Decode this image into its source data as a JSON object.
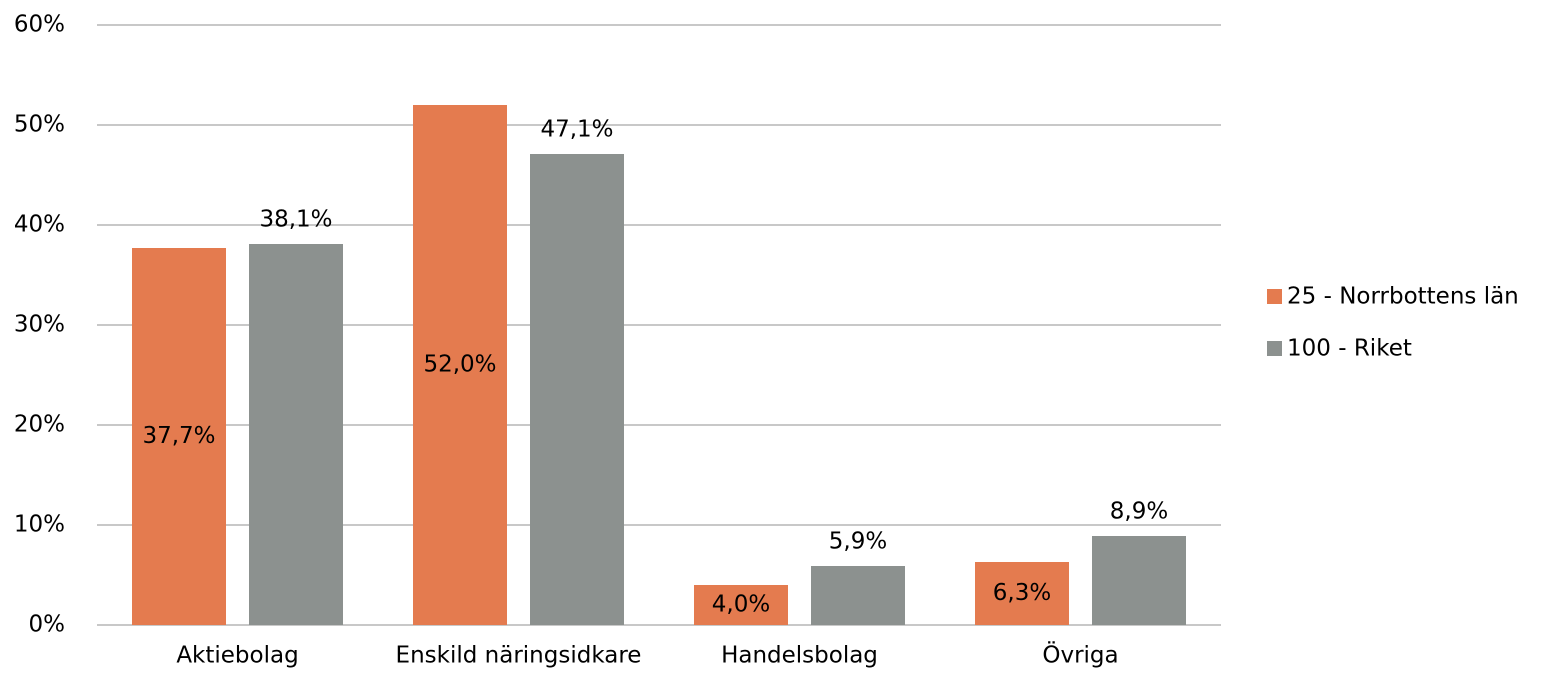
{
  "chart_data": {
    "type": "bar",
    "categories": [
      "Aktiebolag",
      "Enskild näringsidkare",
      "Handelsbolag",
      "Övriga"
    ],
    "series": [
      {
        "name": "25 - Norrbottens län",
        "color": "#e47b4f",
        "values": [
          37.7,
          52.0,
          4.0,
          6.3
        ],
        "value_labels": [
          "37,7%",
          "52,0%",
          "4,0%",
          "6,3%"
        ],
        "label_position": "center"
      },
      {
        "name": "100 - Riket",
        "color": "#8c918f",
        "values": [
          38.1,
          47.1,
          5.9,
          8.9
        ],
        "value_labels": [
          "38,1%",
          "47,1%",
          "5,9%",
          "8,9%"
        ],
        "label_position": "outside_end"
      }
    ],
    "ylim": [
      0,
      60
    ],
    "yticks": [
      {
        "value": 0,
        "label": "0%"
      },
      {
        "value": 10,
        "label": "10%"
      },
      {
        "value": 20,
        "label": "20%"
      },
      {
        "value": 30,
        "label": "30%"
      },
      {
        "value": 40,
        "label": "40%"
      },
      {
        "value": 50,
        "label": "50%"
      },
      {
        "value": 60,
        "label": "60%"
      }
    ],
    "grid": true,
    "legend": "right"
  }
}
